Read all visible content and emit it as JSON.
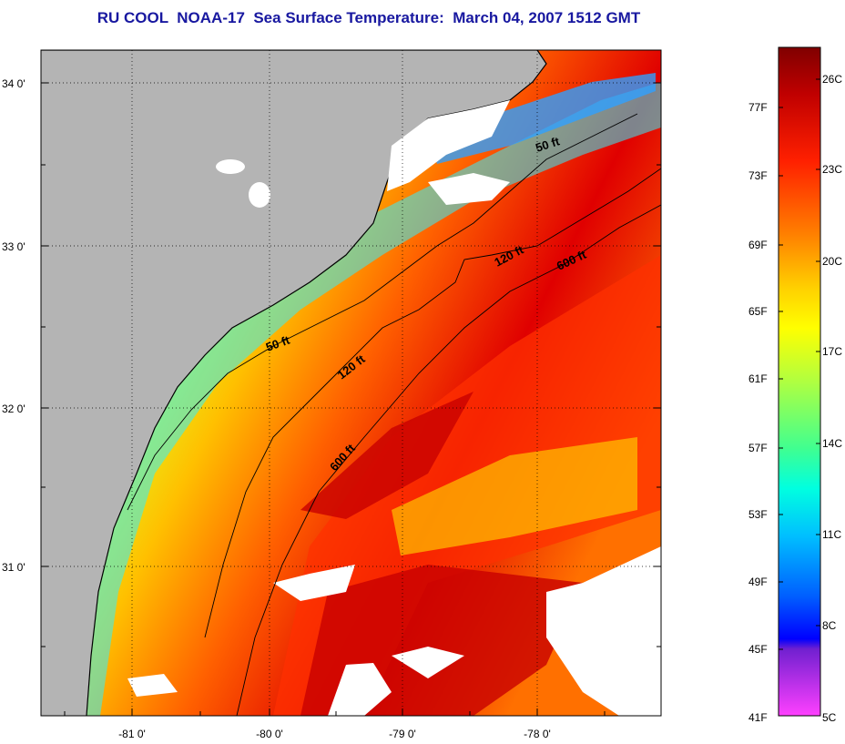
{
  "title": "RU COOL  NOAA-17  Sea Surface Temperature:  March 04, 2007 1512 GMT",
  "map": {
    "lat_labels": [
      "34 0'",
      "33 0'",
      "32 0'",
      "31 0'"
    ],
    "lon_labels": [
      "-81 0'",
      "-80 0'",
      "-79 0'",
      "-78 0'"
    ],
    "depth_contours": [
      "50 ft",
      "120 ft",
      "600 ft"
    ],
    "colors": {
      "land": "#b4b4b4",
      "cloud": "#ffffff",
      "coastline": "#000000"
    }
  },
  "colorbar": {
    "fahrenheit_labels": [
      "77F",
      "73F",
      "69F",
      "65F",
      "61F",
      "57F",
      "53F",
      "49F",
      "45F",
      "41F"
    ],
    "celsius_labels": [
      "26C",
      "23C",
      "20C",
      "17C",
      "14C",
      "11C",
      "8C",
      "5C"
    ],
    "gradient": [
      "#800000",
      "#c00000",
      "#ff2000",
      "#ff7000",
      "#ffb000",
      "#ffff00",
      "#b0ff40",
      "#40ff90",
      "#00ffe0",
      "#00c0ff",
      "#0060ff",
      "#0000ff",
      "#8030c0",
      "#ff40ff"
    ]
  }
}
